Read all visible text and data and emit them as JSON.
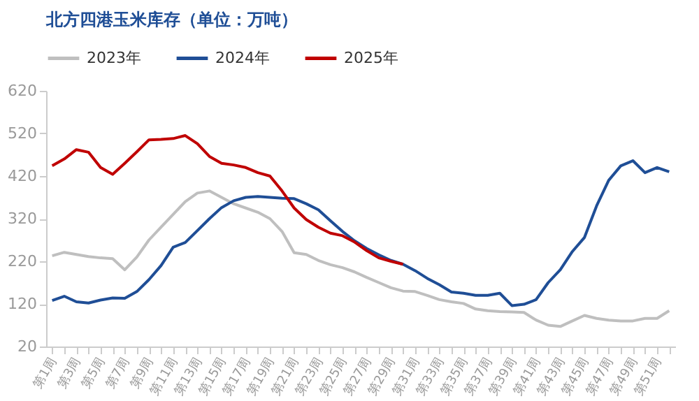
{
  "chart_data": {
    "type": "line",
    "title": "北方四港玉米库存（单位：万吨）",
    "categories": [
      "第1周",
      null,
      "第3周",
      null,
      "第5周",
      null,
      "第7周",
      null,
      "第9周",
      null,
      "第11周",
      null,
      "第13周",
      null,
      "第15周",
      null,
      "第17周",
      null,
      "第19周",
      null,
      "第21周",
      null,
      "第23周",
      null,
      "第25周",
      null,
      "第27周",
      null,
      "第29周",
      null,
      "第31周",
      null,
      "第33周",
      null,
      "第35周",
      null,
      "第37周",
      null,
      "第39周",
      null,
      "第41周",
      null,
      "第43周",
      null,
      "第45周",
      null,
      "第47周",
      null,
      "第49周",
      null,
      "第51周",
      null
    ],
    "series": [
      {
        "name": "2023年",
        "color": "#bfbfbf",
        "values": [
          233,
          241,
          236,
          231,
          228,
          226,
          200,
          230,
          270,
          300,
          330,
          360,
          380,
          385,
          370,
          355,
          345,
          335,
          320,
          290,
          240,
          236,
          222,
          212,
          205,
          195,
          182,
          170,
          158,
          150,
          149,
          140,
          130,
          125,
          121,
          108,
          104,
          102,
          101,
          100,
          82,
          70,
          67,
          80,
          93,
          86,
          82,
          80,
          80,
          86,
          86,
          104
        ]
      },
      {
        "name": "2024年",
        "color": "#1f4e96",
        "values": [
          128,
          138,
          125,
          122,
          129,
          134,
          133,
          149,
          177,
          210,
          253,
          264,
          292,
          320,
          346,
          362,
          370,
          372,
          370,
          368,
          367,
          355,
          341,
          315,
          290,
          268,
          250,
          235,
          222,
          213,
          198,
          180,
          165,
          148,
          145,
          140,
          140,
          145,
          116,
          119,
          130,
          170,
          200,
          243,
          276,
          350,
          410,
          444,
          456,
          428,
          440,
          430
        ]
      },
      {
        "name": "2025年",
        "color": "#c00000",
        "values": [
          444,
          460,
          482,
          476,
          440,
          424,
          450,
          477,
          505,
          506,
          508,
          515,
          496,
          466,
          450,
          446,
          440,
          428,
          420,
          385,
          345,
          318,
          300,
          286,
          280,
          265,
          245,
          228,
          220,
          213,
          null,
          null,
          null,
          null,
          null,
          null,
          null,
          null,
          null,
          null,
          null,
          null,
          null,
          null,
          null,
          null,
          null,
          null,
          null,
          null,
          null,
          null
        ]
      }
    ],
    "ylim": [
      20,
      620
    ],
    "yticks": [
      20,
      120,
      220,
      320,
      420,
      520,
      620
    ],
    "grid": false,
    "legend": "top",
    "marker": "none",
    "line_style": "solid"
  }
}
